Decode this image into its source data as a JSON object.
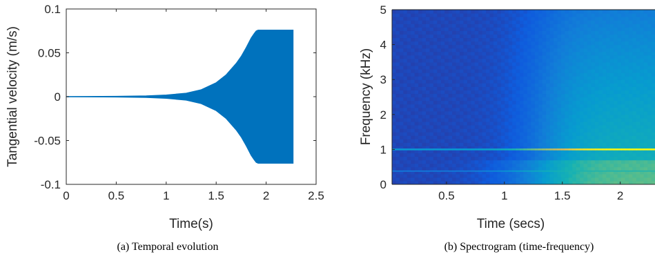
{
  "chart_data": [
    {
      "type": "area",
      "caption": "(a) Temporal evolution",
      "xlabel": "Time(s)",
      "ylabel": "Tangential velocity (m/s)",
      "xlim": [
        0,
        2.5
      ],
      "ylim": [
        -0.1,
        0.1
      ],
      "xticks": [
        "0",
        "0.5",
        "1",
        "1.5",
        "2",
        "2.5"
      ],
      "yticks": [
        "-0.1",
        "-0.05",
        "0",
        "0.05",
        "0.1"
      ],
      "color": "#0072BD",
      "series": [
        {
          "x": [
            0,
            0.5,
            0.8,
            1.0,
            1.2,
            1.35,
            1.5,
            1.6,
            1.7,
            1.75,
            1.8,
            1.85,
            1.88,
            1.9,
            1.92,
            2.0,
            2.1,
            2.2,
            2.27
          ],
          "envelope": [
            0.0002,
            0.0005,
            0.001,
            0.002,
            0.004,
            0.008,
            0.016,
            0.025,
            0.038,
            0.046,
            0.056,
            0.067,
            0.072,
            0.075,
            0.076,
            0.076,
            0.076,
            0.076,
            0.076
          ]
        }
      ]
    },
    {
      "type": "heatmap",
      "caption": "(b) Spectrogram (time-frequency)",
      "xlabel": "Time (secs)",
      "ylabel": "Frequency (kHz)",
      "xlim": [
        0.03,
        2.3
      ],
      "ylim": [
        0,
        5
      ],
      "xticks": [
        "0.5",
        "1",
        "1.5",
        "2"
      ],
      "yticks": [
        "0",
        "1",
        "2",
        "3",
        "4",
        "5"
      ],
      "colormap": "parula",
      "lines_khz": [
        1,
        0.38
      ],
      "grid": false
    }
  ]
}
